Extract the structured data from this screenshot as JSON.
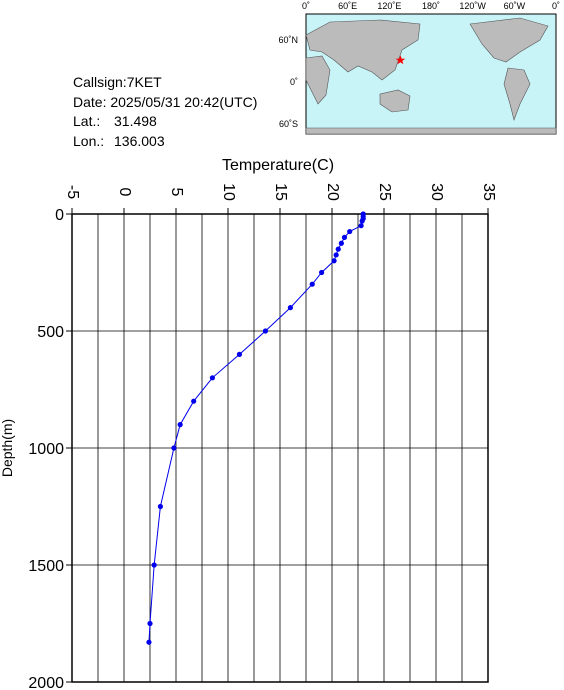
{
  "chart_data": {
    "type": "line",
    "xlabel": "Temperature(C)",
    "ylabel": "Depth(m)",
    "xlim": [
      -5,
      35
    ],
    "xticks": [
      -5,
      0,
      5,
      10,
      15,
      20,
      25,
      30,
      35
    ],
    "xgrid": [
      -5,
      -2.5,
      0,
      2.5,
      5,
      7.5,
      10,
      12.5,
      15,
      17.5,
      20,
      22.5,
      25,
      27.5,
      30,
      32.5,
      35
    ],
    "ylim": [
      0,
      2000
    ],
    "yticks": [
      0,
      500,
      1000,
      1500,
      2000
    ],
    "y_inverted": true,
    "grid": true,
    "color": "#0000ee",
    "y": [
      0,
      10,
      20,
      30,
      50,
      75,
      100,
      125,
      150,
      175,
      200,
      250,
      300,
      400,
      500,
      600,
      700,
      800,
      900,
      1000,
      1250,
      1500,
      1750,
      1830
    ],
    "values": [
      23.0,
      23.0,
      23.0,
      22.9,
      22.8,
      21.7,
      21.2,
      20.9,
      20.6,
      20.4,
      20.2,
      19.0,
      18.1,
      16.0,
      13.6,
      11.1,
      8.5,
      6.7,
      5.4,
      4.8,
      3.5,
      2.9,
      2.5,
      2.4
    ]
  },
  "info": {
    "callsign": "Callsign:7KET",
    "date": "Date:  2025/05/31 20:42(UTC)",
    "lat_label": "Lat.:",
    "lat": 31.498,
    "lon_label": "Lon.:",
    "lon": 136.003
  },
  "map": {
    "lon_labels": [
      "0˚",
      "60˚E",
      "120˚E",
      "180˚",
      "120˚W",
      "60˚W",
      "0˚"
    ],
    "lat_labels": [
      "60˚N",
      "0˚",
      "60˚S"
    ]
  }
}
